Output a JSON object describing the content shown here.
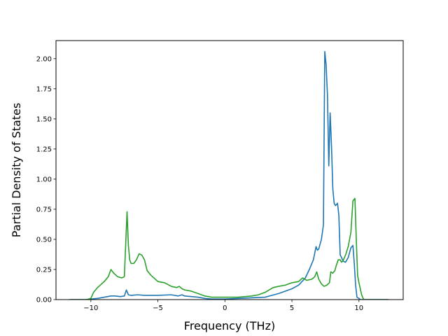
{
  "chart_data": {
    "type": "line",
    "title": "",
    "xlabel": "Frequency (THz)",
    "ylabel": "Partial Density of States",
    "xlim": [
      -12.6,
      13.3
    ],
    "ylim": [
      0,
      2.15
    ],
    "xticks": [
      -10,
      -5,
      0,
      5,
      10
    ],
    "xtick_labels": [
      "−10",
      "−5",
      "0",
      "5",
      "10"
    ],
    "yticks": [
      0,
      0.25,
      0.5,
      0.75,
      1.0,
      1.25,
      1.5,
      1.75,
      2.0
    ],
    "ytick_labels": [
      "0.00",
      "0.25",
      "0.50",
      "0.75",
      "1.00",
      "1.25",
      "1.50",
      "1.75",
      "2.00"
    ],
    "grid": false,
    "colors": [
      "#1f77b4",
      "#2ca02c"
    ],
    "series": [
      {
        "color": "#1f77b4",
        "x": [
          -11.6,
          -10.4,
          -10.0,
          -9.5,
          -9.0,
          -8.5,
          -8.2,
          -7.8,
          -7.5,
          -7.35,
          -7.2,
          -7.0,
          -6.5,
          -6.0,
          -5.0,
          -4.0,
          -3.5,
          -3.2,
          -3.0,
          -2.5,
          -2.0,
          -1.5,
          -1.0,
          0.0,
          1.0,
          2.0,
          3.0,
          4.0,
          4.5,
          5.0,
          5.5,
          6.0,
          6.3,
          6.6,
          6.8,
          6.9,
          7.0,
          7.2,
          7.35,
          7.45,
          7.55,
          7.65,
          7.75,
          7.85,
          7.95,
          8.05,
          8.15,
          8.25,
          8.4,
          8.5,
          8.6,
          8.7,
          8.8,
          9.0,
          9.2,
          9.4,
          9.55,
          9.65,
          9.75,
          9.85,
          10.0,
          10.1,
          10.3,
          11.0,
          12.2
        ],
        "y": [
          0.0,
          0.0,
          0.005,
          0.01,
          0.02,
          0.03,
          0.03,
          0.025,
          0.03,
          0.08,
          0.04,
          0.035,
          0.04,
          0.035,
          0.035,
          0.04,
          0.03,
          0.04,
          0.03,
          0.025,
          0.02,
          0.01,
          0.005,
          0.005,
          0.01,
          0.015,
          0.02,
          0.05,
          0.07,
          0.09,
          0.12,
          0.18,
          0.25,
          0.33,
          0.44,
          0.41,
          0.42,
          0.5,
          0.62,
          2.06,
          1.95,
          1.7,
          1.11,
          1.55,
          1.28,
          0.92,
          0.8,
          0.78,
          0.8,
          0.7,
          0.37,
          0.35,
          0.32,
          0.31,
          0.35,
          0.43,
          0.45,
          0.3,
          0.12,
          0.02,
          0.01,
          0.0,
          0.0,
          0.0,
          0.0
        ]
      },
      {
        "color": "#2ca02c",
        "x": [
          -11.6,
          -10.3,
          -10.0,
          -9.8,
          -9.5,
          -9.0,
          -8.7,
          -8.5,
          -8.3,
          -8.0,
          -7.7,
          -7.5,
          -7.4,
          -7.3,
          -7.2,
          -7.1,
          -7.0,
          -6.8,
          -6.6,
          -6.4,
          -6.2,
          -6.0,
          -5.8,
          -5.5,
          -5.0,
          -4.5,
          -4.0,
          -3.6,
          -3.4,
          -3.2,
          -3.0,
          -2.5,
          -2.0,
          -1.5,
          -1.0,
          -0.5,
          0.0,
          0.5,
          1.0,
          1.5,
          2.0,
          2.5,
          3.0,
          3.3,
          3.6,
          4.0,
          4.5,
          5.0,
          5.5,
          5.8,
          6.1,
          6.5,
          6.7,
          6.85,
          7.0,
          7.2,
          7.4,
          7.6,
          7.8,
          7.9,
          8.05,
          8.2,
          8.3,
          8.45,
          8.6,
          8.7,
          8.8,
          9.0,
          9.2,
          9.4,
          9.55,
          9.7,
          9.8,
          9.9,
          10.0,
          10.2,
          10.35,
          11.0,
          12.2
        ],
        "y": [
          0.0,
          0.0,
          0.01,
          0.06,
          0.1,
          0.15,
          0.19,
          0.25,
          0.22,
          0.19,
          0.18,
          0.19,
          0.46,
          0.73,
          0.45,
          0.33,
          0.3,
          0.3,
          0.33,
          0.38,
          0.37,
          0.33,
          0.24,
          0.2,
          0.15,
          0.14,
          0.11,
          0.1,
          0.11,
          0.09,
          0.08,
          0.07,
          0.05,
          0.03,
          0.02,
          0.02,
          0.02,
          0.02,
          0.02,
          0.025,
          0.03,
          0.04,
          0.06,
          0.08,
          0.1,
          0.11,
          0.12,
          0.14,
          0.15,
          0.18,
          0.16,
          0.17,
          0.19,
          0.23,
          0.17,
          0.13,
          0.11,
          0.12,
          0.14,
          0.23,
          0.22,
          0.24,
          0.28,
          0.33,
          0.33,
          0.31,
          0.32,
          0.37,
          0.44,
          0.56,
          0.82,
          0.84,
          0.5,
          0.2,
          0.14,
          0.04,
          0.0,
          0.0,
          0.0
        ]
      }
    ]
  }
}
